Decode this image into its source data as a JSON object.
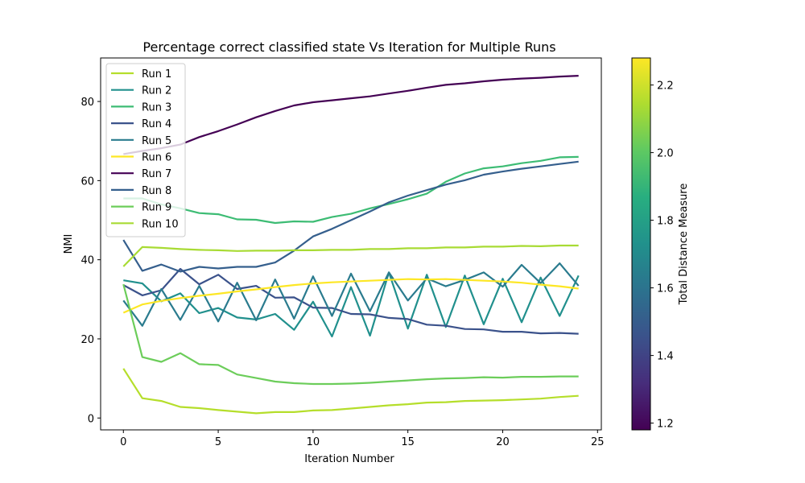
{
  "chart_data": {
    "type": "line",
    "title": "Percentage correct classified state Vs Iteration for Multiple Runs",
    "xlabel": "Iteration Number",
    "ylabel": "NMI",
    "xlim": [
      -1.2,
      25.2
    ],
    "ylim": [
      -3,
      91
    ],
    "xticks": [
      0,
      5,
      10,
      15,
      20,
      25
    ],
    "yticks": [
      0,
      20,
      40,
      60,
      80
    ],
    "grid": false,
    "legend_position": "top-left",
    "colorbar": {
      "label": "Total Distance Measure",
      "min": 1.18,
      "max": 2.28,
      "ticks": [
        1.2,
        1.4,
        1.6,
        1.8,
        2.0,
        2.2
      ],
      "tick_labels": [
        "1.2",
        "1.4",
        "1.6",
        "1.8",
        "2.0",
        "2.2"
      ],
      "colormap": "viridis"
    },
    "x": [
      0,
      1,
      2,
      3,
      4,
      5,
      6,
      7,
      8,
      9,
      10,
      11,
      12,
      13,
      14,
      15,
      16,
      17,
      18,
      19,
      20,
      21,
      22,
      23,
      24
    ],
    "series": [
      {
        "name": "Run 1",
        "color": "#b5de2b",
        "values": [
          12.5,
          5.0,
          4.3,
          2.8,
          2.5,
          2.0,
          1.6,
          1.2,
          1.5,
          1.5,
          1.9,
          2.0,
          2.4,
          2.8,
          3.2,
          3.5,
          3.9,
          4.0,
          4.3,
          4.4,
          4.5,
          4.7,
          4.9,
          5.3,
          5.6
        ]
      },
      {
        "name": "Run 2",
        "color": "#21908d",
        "values": [
          34.8,
          34.0,
          29.5,
          31.5,
          26.5,
          27.8,
          25.4,
          24.9,
          26.3,
          22.3,
          29.4,
          20.6,
          33.1,
          20.8,
          36.8,
          22.6,
          36.2,
          23.0,
          36.0,
          23.7,
          35.2,
          24.2,
          35.5,
          25.8,
          36.0
        ]
      },
      {
        "name": "Run 3",
        "color": "#3dbc74",
        "values": [
          55.5,
          55.5,
          54.0,
          53.0,
          51.8,
          51.5,
          50.2,
          50.1,
          49.3,
          49.7,
          49.6,
          50.8,
          51.6,
          53.0,
          54.1,
          55.3,
          56.7,
          59.7,
          61.8,
          63.1,
          63.6,
          64.4,
          65.0,
          65.9,
          66.0
        ]
      },
      {
        "name": "Run 4",
        "color": "#3b528b",
        "values": [
          33.6,
          31.0,
          32.3,
          37.7,
          33.8,
          36.2,
          32.6,
          33.4,
          30.4,
          30.5,
          27.9,
          27.8,
          26.3,
          26.2,
          25.3,
          25.0,
          23.6,
          23.3,
          22.5,
          22.4,
          21.8,
          21.8,
          21.4,
          21.5,
          21.3
        ]
      },
      {
        "name": "Run 5",
        "color": "#2a7b8e",
        "values": [
          29.7,
          23.3,
          32.6,
          24.8,
          33.4,
          24.4,
          34.2,
          24.7,
          35.0,
          25.1,
          35.8,
          25.8,
          36.5,
          27.0,
          36.8,
          29.7,
          35.3,
          33.3,
          34.9,
          36.8,
          33.2,
          38.7,
          34.1,
          39.1,
          33.4
        ]
      },
      {
        "name": "Run 6",
        "color": "#fde725",
        "values": [
          26.6,
          28.7,
          29.6,
          30.3,
          30.9,
          31.4,
          32.0,
          32.5,
          33.1,
          33.6,
          34.0,
          34.3,
          34.5,
          34.7,
          34.9,
          35.1,
          35.0,
          35.1,
          34.9,
          34.7,
          34.5,
          34.2,
          33.7,
          33.3,
          32.7
        ]
      },
      {
        "name": "Run 7",
        "color": "#440154",
        "values": [
          66.7,
          67.5,
          68.2,
          69.1,
          71.0,
          72.5,
          74.2,
          76.0,
          77.6,
          79.0,
          79.8,
          80.3,
          80.8,
          81.3,
          82.0,
          82.7,
          83.5,
          84.2,
          84.6,
          85.1,
          85.5,
          85.8,
          86.0,
          86.3,
          86.5
        ]
      },
      {
        "name": "Run 8",
        "color": "#355f8d",
        "values": [
          45.0,
          37.2,
          38.8,
          37.0,
          38.2,
          37.8,
          38.2,
          38.2,
          39.3,
          42.3,
          45.9,
          47.8,
          50.0,
          52.2,
          54.5,
          56.2,
          57.6,
          59.0,
          60.1,
          61.5,
          62.3,
          63.0,
          63.6,
          64.2,
          64.8
        ]
      },
      {
        "name": "Run 9",
        "color": "#6ccd5a",
        "values": [
          33.8,
          15.4,
          14.2,
          16.4,
          13.6,
          13.4,
          11.0,
          10.1,
          9.2,
          8.8,
          8.6,
          8.6,
          8.7,
          8.9,
          9.2,
          9.5,
          9.8,
          10.0,
          10.1,
          10.3,
          10.2,
          10.4,
          10.4,
          10.5,
          10.5
        ]
      },
      {
        "name": "Run 10",
        "color": "#a8db34",
        "values": [
          38.3,
          43.2,
          43.0,
          42.7,
          42.5,
          42.4,
          42.2,
          42.3,
          42.3,
          42.4,
          42.4,
          42.5,
          42.5,
          42.7,
          42.7,
          42.9,
          42.9,
          43.1,
          43.1,
          43.3,
          43.3,
          43.5,
          43.4,
          43.6,
          43.6
        ]
      }
    ]
  }
}
